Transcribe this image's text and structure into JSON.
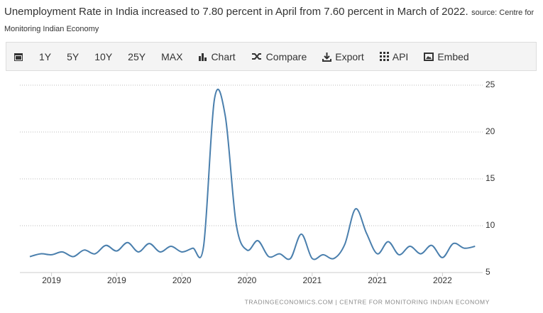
{
  "header": {
    "title": "Unemployment Rate in India increased to 7.80 percent in April from 7.60 percent in March of 2022.",
    "source": "source: Centre for Monitoring Indian Economy"
  },
  "toolbar": [
    "1Y",
    "5Y",
    "10Y",
    "25Y",
    "MAX",
    "Chart",
    "Compare",
    "Export",
    "API",
    "Embed"
  ],
  "chart_data": {
    "type": "line",
    "categories": [
      null,
      null,
      "2019",
      null,
      null,
      null,
      null,
      null,
      "2019",
      null,
      null,
      null,
      null,
      null,
      "2020",
      null,
      null,
      null,
      null,
      null,
      "2020",
      null,
      null,
      null,
      null,
      null,
      "2021",
      null,
      null,
      null,
      null,
      null,
      "2021",
      null,
      null,
      null,
      null,
      null,
      "2022",
      null,
      null,
      null
    ],
    "series": [
      {
        "color": "#4a7fad",
        "values": [
          6.7,
          7.0,
          6.9,
          7.2,
          6.7,
          7.4,
          7.0,
          7.9,
          7.3,
          8.2,
          7.2,
          8.1,
          7.2,
          7.8,
          7.2,
          7.6,
          7.8,
          23.5,
          21.7,
          10.2,
          7.4,
          8.4,
          6.7,
          7.0,
          6.5,
          9.1,
          6.5,
          6.9,
          6.5,
          8.0,
          11.8,
          9.2,
          7.0,
          8.3,
          6.9,
          7.8,
          7.0,
          7.9,
          6.6,
          8.1,
          7.6,
          7.8
        ]
      }
    ],
    "ylim": [
      5,
      25
    ],
    "yticks": [
      5,
      10,
      15,
      20,
      25
    ],
    "grid": true
  },
  "footer": "TRADINGECONOMICS.COM | CENTRE FOR MONITORING INDIAN ECONOMY"
}
